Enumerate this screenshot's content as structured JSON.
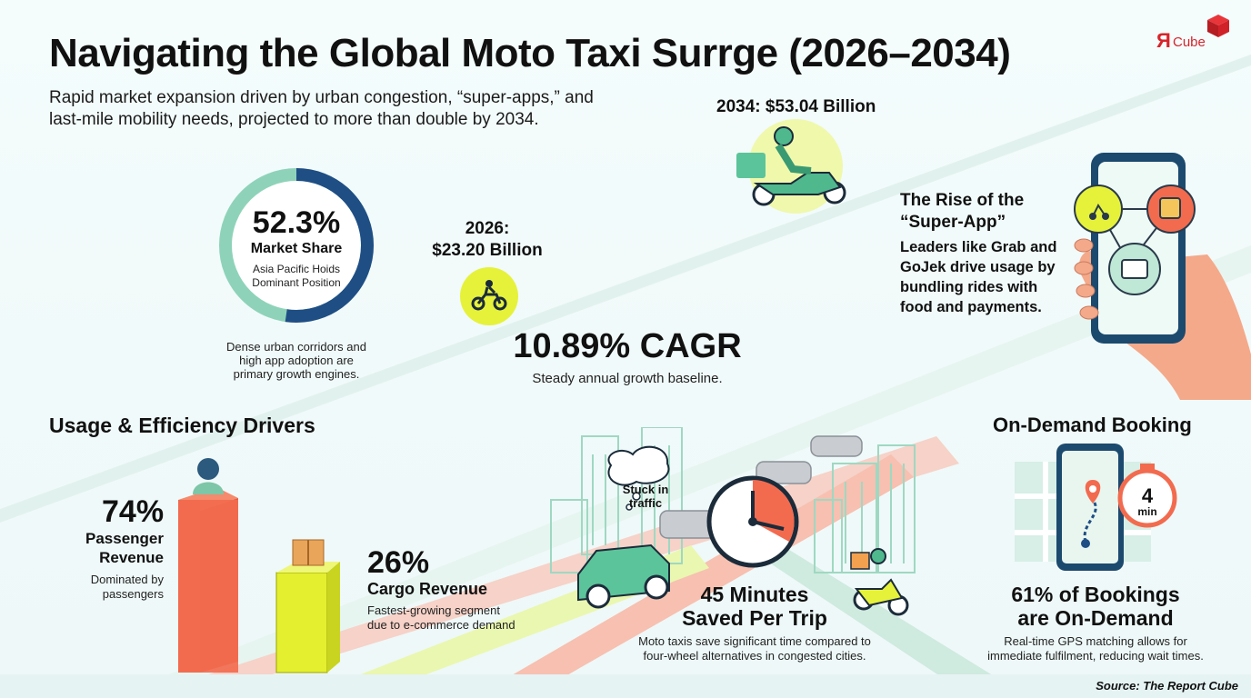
{
  "logo": {
    "text_r": "Я",
    "text_cube": "Cube",
    "color": "#d8242a"
  },
  "title": "Navigating the Global Moto Taxi Surrge (2026–2034)",
  "subtitle": "Rapid market expansion driven by urban congestion, “super-apps,” and last-mile mobility needs, projected to more than double by 2034.",
  "market_share": {
    "value": "52.3%",
    "label": "Market Share",
    "sub1": "Asia Pacific Hoids",
    "sub2": "Dominant Position",
    "fraction": 0.523,
    "note1": "Dense urban corridors and",
    "note2": "high app adoption are",
    "note3": "primary growth engines.",
    "colors": {
      "arc": "#1f4e85",
      "rest": "#8ed3b9"
    }
  },
  "y2026": {
    "year": "2026:",
    "value": "$23.20 Billion"
  },
  "y2034": {
    "label": "2034: $53.04 Billion"
  },
  "cagr": {
    "value": "10.89% CAGR",
    "note": "Steady annual growth baseline."
  },
  "super_app": {
    "title1": "The Rise of the",
    "title2": "“Super-App”",
    "line1": "Leaders like Grab and",
    "line2": "GoJek drive usage by",
    "line3": "bundling rides with",
    "line4": "food and payments."
  },
  "usage": {
    "heading": "Usage & Efficiency Drivers",
    "passenger": {
      "value": "74%",
      "label1": "Passenger",
      "label2": "Revenue",
      "note1": "Dominated by",
      "note2": "passengers",
      "color": "#f26b4f"
    },
    "cargo": {
      "value": "26%",
      "label": "Cargo Revenue",
      "note1": "Fastest-growing segment",
      "note2": "due to e-commerce demand",
      "color": "#e3ef2f"
    }
  },
  "time_saved": {
    "bubble1": "Stuck in",
    "bubble2": "traffic",
    "value1": "45 Minutes",
    "value2": "Saved Per Trip",
    "note1": "Moto taxis save significant time compared to",
    "note2": "four-wheel alternatives in congested cities."
  },
  "on_demand": {
    "heading": "On-Demand Booking",
    "timer_value": "4",
    "timer_unit": "min",
    "stat1": "61% of Bookings",
    "stat2": "are On-Demand",
    "note1": "Real-time GPS matching allows for",
    "note2": "immediate fulfilment, reducing wait times."
  },
  "source": "Source: The Report Cube"
}
